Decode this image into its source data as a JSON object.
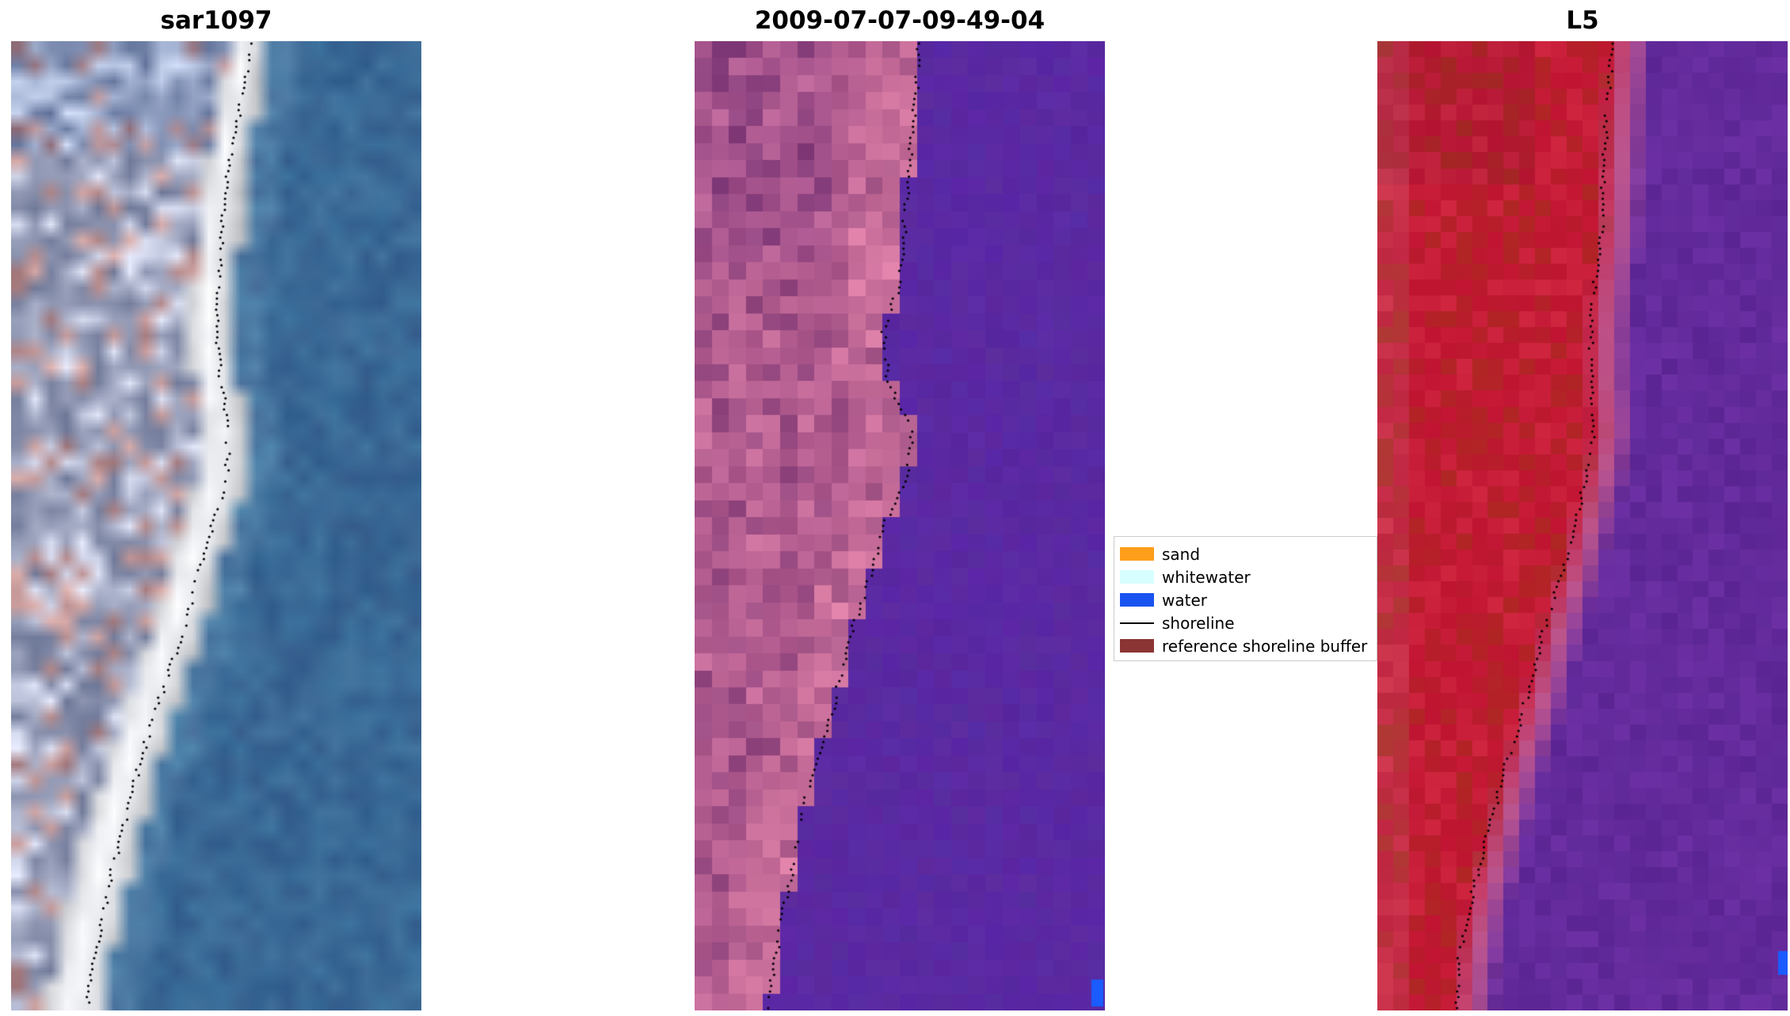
{
  "figure": {
    "background": "#ffffff"
  },
  "chart_data": {
    "type": "image-panels",
    "description": "Three-panel coastal satellite figure: SAR RGB image, classified image with reference shoreline buffer, and Landsat 5 false-color image, each overlaid with a dotted mapped shoreline running from upper-right to lower-left.",
    "panels": [
      {
        "title": "sar1097",
        "content": "SAR RGB image: blue ocean on right, bright white beach/whitewater band along shoreline, mottled grey-lavender land with tan patches on left",
        "style": "sar",
        "seed": 7,
        "grid": [
          26,
          61
        ],
        "smooth": true,
        "shoreline": [
          [
            0,
            0.585
          ],
          [
            0.05,
            0.565
          ],
          [
            0.1,
            0.545
          ],
          [
            0.15,
            0.525
          ],
          [
            0.2,
            0.515
          ],
          [
            0.25,
            0.505
          ],
          [
            0.3,
            0.5
          ],
          [
            0.35,
            0.51
          ],
          [
            0.4,
            0.53
          ],
          [
            0.45,
            0.525
          ],
          [
            0.5,
            0.49
          ],
          [
            0.55,
            0.455
          ],
          [
            0.6,
            0.425
          ],
          [
            0.65,
            0.385
          ],
          [
            0.7,
            0.345
          ],
          [
            0.75,
            0.31
          ],
          [
            0.8,
            0.28
          ],
          [
            0.85,
            0.25
          ],
          [
            0.9,
            0.225
          ],
          [
            0.95,
            0.2
          ],
          [
            1,
            0.185
          ]
        ]
      },
      {
        "title": "2009-07-07-09-49-04",
        "content": "Classified image: purple water on right, pink/magenta reference shoreline buffer region on left, blocky class boundary, small blue water patch at bottom right",
        "style": "classified",
        "seed": 13,
        "grid": [
          24,
          57
        ],
        "smooth": false,
        "water_patch": [
          17,
          5,
          15,
          34
        ],
        "shoreline": [
          [
            0,
            0.545
          ],
          [
            0.05,
            0.54
          ],
          [
            0.1,
            0.53
          ],
          [
            0.15,
            0.52
          ],
          [
            0.2,
            0.51
          ],
          [
            0.25,
            0.5
          ],
          [
            0.3,
            0.46
          ],
          [
            0.35,
            0.47
          ],
          [
            0.4,
            0.53
          ],
          [
            0.45,
            0.52
          ],
          [
            0.5,
            0.46
          ],
          [
            0.55,
            0.43
          ],
          [
            0.6,
            0.39
          ],
          [
            0.65,
            0.36
          ],
          [
            0.7,
            0.33
          ],
          [
            0.75,
            0.29
          ],
          [
            0.8,
            0.26
          ],
          [
            0.85,
            0.24
          ],
          [
            0.9,
            0.215
          ],
          [
            0.95,
            0.195
          ],
          [
            1,
            0.18
          ]
        ]
      },
      {
        "title": "L5",
        "content": "Landsat 5 false-color image: red land on left, purple water on right, thin pink transition at shoreline, small blue pixel at bottom right edge",
        "style": "falsecolor",
        "seed": 23,
        "grid": [
          26,
          61
        ],
        "smooth": false,
        "water_patch": [
          12,
          45,
          12,
          30
        ],
        "shoreline": [
          [
            0,
            0.575
          ],
          [
            0.05,
            0.565
          ],
          [
            0.1,
            0.556
          ],
          [
            0.15,
            0.55
          ],
          [
            0.2,
            0.545
          ],
          [
            0.25,
            0.53
          ],
          [
            0.3,
            0.52
          ],
          [
            0.35,
            0.52
          ],
          [
            0.4,
            0.53
          ],
          [
            0.45,
            0.51
          ],
          [
            0.5,
            0.48
          ],
          [
            0.55,
            0.45
          ],
          [
            0.6,
            0.41
          ],
          [
            0.65,
            0.38
          ],
          [
            0.7,
            0.35
          ],
          [
            0.75,
            0.31
          ],
          [
            0.8,
            0.28
          ],
          [
            0.85,
            0.25
          ],
          [
            0.9,
            0.22
          ],
          [
            0.95,
            0.2
          ],
          [
            1,
            0.19
          ]
        ]
      }
    ],
    "legend_position": "center-right"
  },
  "legend": {
    "entries": [
      {
        "label": "sand",
        "color": "#ff9e1b",
        "kind": "patch"
      },
      {
        "label": "whitewater",
        "color": "#d8ffff",
        "kind": "patch"
      },
      {
        "label": "water",
        "color": "#1a54f0",
        "kind": "patch"
      },
      {
        "label": "shoreline",
        "color": "#000000",
        "kind": "line"
      },
      {
        "label": "reference shoreline buffer",
        "color": "#8b3535",
        "kind": "patch"
      }
    ]
  },
  "palette": {
    "ocean_blue": "#3f6f9e",
    "whitewater_band": "#f2f5f8",
    "land_grey_lavender": "#9aa2bf",
    "classified_water_purple": "#5a2ba2",
    "buffer_pink": "#b65f96",
    "l5_land_red": "#c11732",
    "l5_water_purple": "#662aa0",
    "water_patch_blue": "#1a5cff",
    "shoreline_dots": "#000000"
  }
}
